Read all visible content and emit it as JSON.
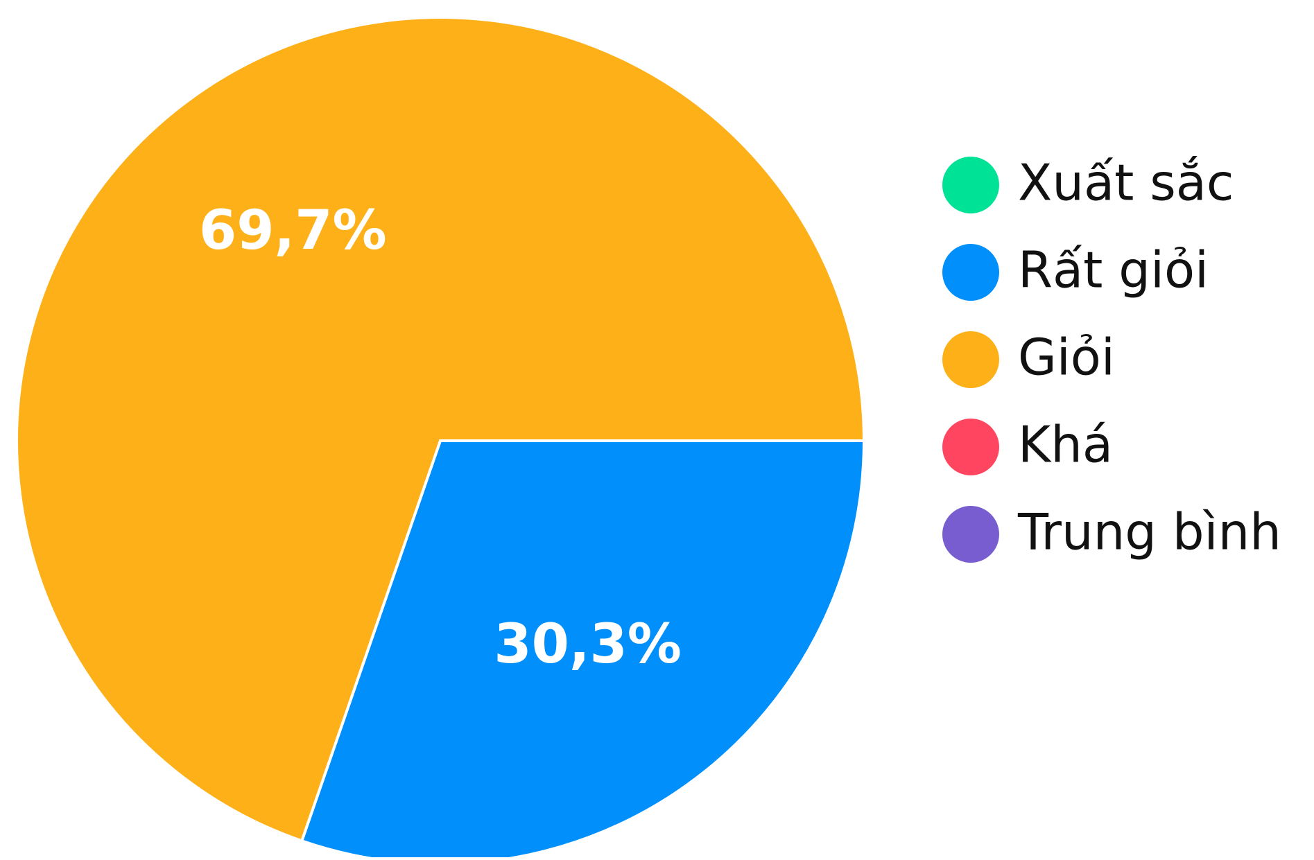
{
  "chart_data": {
    "type": "pie",
    "categories": [
      "Xuất sắc",
      "Rất giỏi",
      "Giỏi",
      "Khá",
      "Trung bình"
    ],
    "values": [
      0,
      30.3,
      69.7,
      0,
      0
    ],
    "value_labels": [
      null,
      "30,3%",
      "69,7%",
      null,
      null
    ],
    "colors": [
      "#00E396",
      "#008FFB",
      "#FEB019",
      "#FF4560",
      "#775DD0"
    ],
    "legend": "right"
  }
}
